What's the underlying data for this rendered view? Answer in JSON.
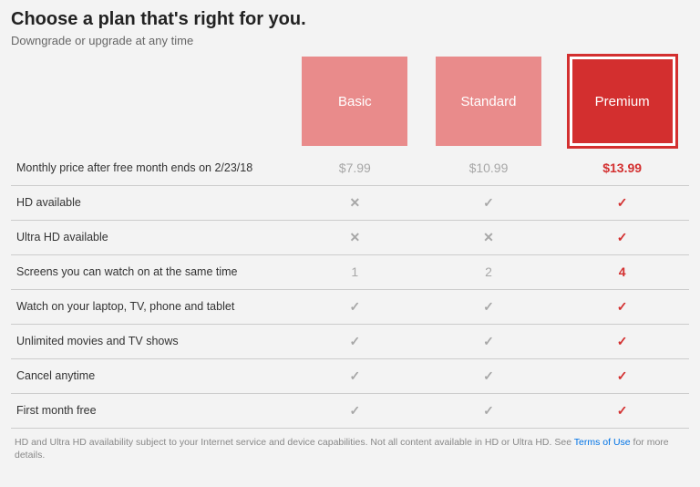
{
  "title": "Choose a plan that's right for you.",
  "subtitle": "Downgrade or upgrade at any time",
  "plans": [
    {
      "name": "Basic",
      "selected": false,
      "bg_inactive": "#e98b8b"
    },
    {
      "name": "Standard",
      "selected": false,
      "bg_inactive": "#e98b8b"
    },
    {
      "name": "Premium",
      "selected": true,
      "bg_active": "#d32f2f"
    }
  ],
  "selected_color": "#d32f2f",
  "muted_color": "#a7a7a7",
  "border_color": "#cccccc",
  "background_color": "#f3f3f3",
  "features": [
    {
      "label": "Monthly price after free month ends on 2/23/18",
      "values": [
        "$7.99",
        "$10.99",
        "$13.99"
      ],
      "type": "text"
    },
    {
      "label": "HD available",
      "values": [
        "x",
        "check",
        "check"
      ],
      "type": "icon"
    },
    {
      "label": "Ultra HD available",
      "values": [
        "x",
        "x",
        "check"
      ],
      "type": "icon"
    },
    {
      "label": "Screens you can watch on at the same time",
      "values": [
        "1",
        "2",
        "4"
      ],
      "type": "text"
    },
    {
      "label": "Watch on your laptop, TV, phone and tablet",
      "values": [
        "check",
        "check",
        "check"
      ],
      "type": "icon"
    },
    {
      "label": "Unlimited movies and TV shows",
      "values": [
        "check",
        "check",
        "check"
      ],
      "type": "icon"
    },
    {
      "label": "Cancel anytime",
      "values": [
        "check",
        "check",
        "check"
      ],
      "type": "icon"
    },
    {
      "label": "First month free",
      "values": [
        "check",
        "check",
        "check"
      ],
      "type": "icon"
    }
  ],
  "footnote_pre": "HD and Ultra HD availability subject to your Internet service and device capabilities. Not all content available in HD or Ultra HD. See ",
  "footnote_link": "Terms of Use",
  "footnote_post": " for more details."
}
